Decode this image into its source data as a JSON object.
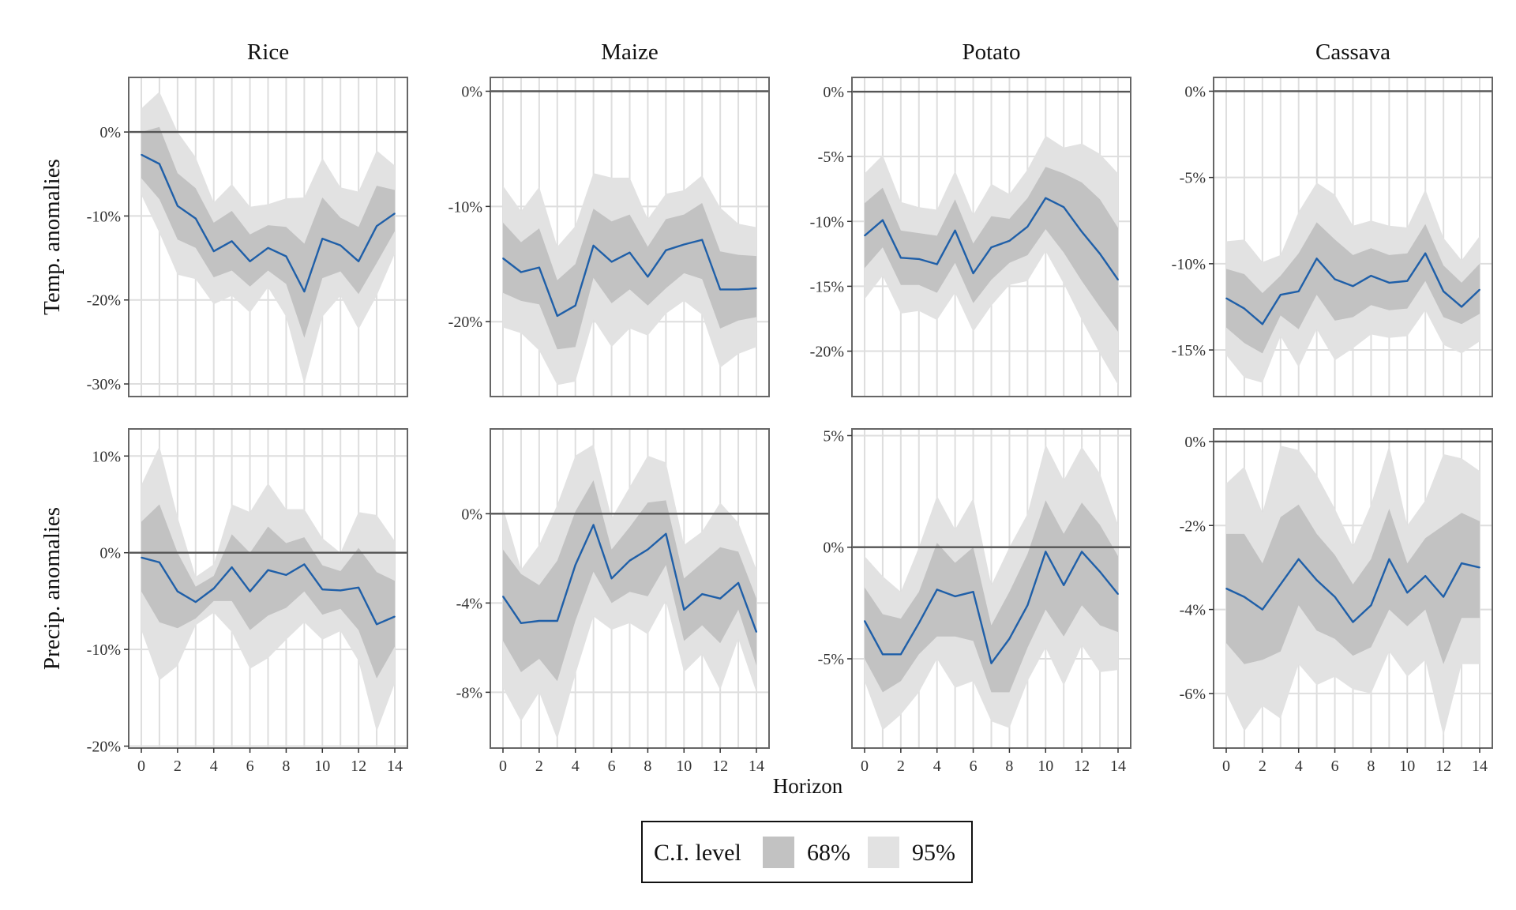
{
  "chart_data": {
    "type": "line",
    "xlabel": "Horizon",
    "columns": [
      "Rice",
      "Maize",
      "Potato",
      "Cassava"
    ],
    "rows": [
      "Temp. anomalies",
      "Precip. anomalies"
    ],
    "x": [
      0,
      1,
      2,
      3,
      4,
      5,
      6,
      7,
      8,
      9,
      10,
      11,
      12,
      13,
      14
    ],
    "x_ticks": [
      0,
      2,
      4,
      6,
      8,
      10,
      12,
      14
    ],
    "legend": {
      "title": "C.I. level",
      "items": [
        {
          "label": "68%",
          "color": "#c2c2c2"
        },
        {
          "label": "95%",
          "color": "#e2e2e2"
        }
      ],
      "placement": "bottom"
    },
    "line_color": "#1f5fa8",
    "grid": true,
    "panels": [
      {
        "crop": "Rice",
        "variable": "Temp. anomalies",
        "ylim": [
          -31.5,
          6.5
        ],
        "yticks": [
          0,
          -10,
          -20,
          -30
        ],
        "ytick_labels": [
          "0%",
          "-10%",
          "-20%",
          "-30%"
        ],
        "y": [
          -2.7,
          -3.8,
          -8.8,
          -10.3,
          -14.2,
          -13.0,
          -15.4,
          -13.8,
          -14.8,
          -19.0,
          -12.7,
          -13.5,
          -15.4,
          -11.2,
          -9.7
        ],
        "ci68": {
          "lower": [
            -5.5,
            -8.0,
            -12.8,
            -13.8,
            -17.3,
            -16.5,
            -18.4,
            -16.5,
            -18.1,
            -24.5,
            -17.4,
            -16.6,
            -19.3,
            -15.6,
            -11.8
          ],
          "upper": [
            0.0,
            0.6,
            -4.9,
            -6.7,
            -10.8,
            -9.4,
            -12.2,
            -11.1,
            -11.3,
            -13.3,
            -7.8,
            -10.2,
            -11.3,
            -6.4,
            -6.9
          ]
        },
        "ci95": {
          "lower": [
            -7.5,
            -12.0,
            -17.0,
            -17.5,
            -20.5,
            -19.5,
            -21.5,
            -18.5,
            -22.0,
            -30.0,
            -22.0,
            -19.5,
            -23.5,
            -19.5,
            -14.5
          ],
          "upper": [
            2.8,
            4.8,
            0.0,
            -3.0,
            -8.4,
            -6.2,
            -8.9,
            -8.6,
            -7.9,
            -7.8,
            -3.1,
            -6.6,
            -7.1,
            -2.2,
            -4.0
          ]
        }
      },
      {
        "crop": "Maize",
        "variable": "Temp. anomalies",
        "ylim": [
          -26.5,
          1.2
        ],
        "yticks": [
          0,
          -10,
          -20
        ],
        "ytick_labels": [
          "0%",
          "-10%",
          "-20%"
        ],
        "y": [
          -14.5,
          -15.7,
          -15.3,
          -19.5,
          -18.6,
          -13.4,
          -14.8,
          -14.0,
          -16.1,
          -13.8,
          -13.3,
          -12.9,
          -17.2,
          -17.2,
          -17.1
        ],
        "ci68": {
          "lower": [
            -17.5,
            -18.2,
            -18.5,
            -22.4,
            -22.2,
            -16.2,
            -18.4,
            -17.2,
            -18.6,
            -17.1,
            -15.8,
            -16.3,
            -20.6,
            -19.9,
            -19.6
          ],
          "upper": [
            -11.4,
            -13.1,
            -11.9,
            -16.4,
            -15.0,
            -10.2,
            -11.3,
            -10.7,
            -13.5,
            -11.1,
            -10.7,
            -9.7,
            -13.9,
            -14.2,
            -14.3
          ]
        },
        "ci95": {
          "lower": [
            -20.5,
            -21.0,
            -22.5,
            -25.5,
            -25.2,
            -19.8,
            -22.2,
            -20.6,
            -21.2,
            -19.3,
            -18.2,
            -19.4,
            -24.0,
            -22.8,
            -22.2
          ],
          "upper": [
            -8.2,
            -10.4,
            -8.3,
            -13.5,
            -11.7,
            -7.1,
            -7.5,
            -7.5,
            -11.1,
            -8.9,
            -8.6,
            -7.3,
            -10.1,
            -11.5,
            -11.8
          ]
        }
      },
      {
        "crop": "Potato",
        "variable": "Temp. anomalies",
        "ylim": [
          -23.5,
          1.1
        ],
        "yticks": [
          0,
          -5,
          -10,
          -15,
          -20
        ],
        "ytick_labels": [
          "0%",
          "-5%",
          "-10%",
          "-15%",
          "-20%"
        ],
        "y": [
          -11.1,
          -9.9,
          -12.8,
          -12.9,
          -13.3,
          -10.7,
          -14.0,
          -12.0,
          -11.5,
          -10.4,
          -8.2,
          -8.9,
          -10.8,
          -12.5,
          -14.5
        ],
        "ci68": {
          "lower": [
            -13.6,
            -12.0,
            -14.9,
            -14.9,
            -15.5,
            -13.2,
            -16.3,
            -14.5,
            -13.2,
            -12.6,
            -10.6,
            -12.4,
            -14.6,
            -16.6,
            -18.5
          ],
          "upper": [
            -8.6,
            -7.4,
            -10.7,
            -10.9,
            -11.1,
            -8.3,
            -11.7,
            -9.6,
            -9.8,
            -8.2,
            -5.8,
            -6.3,
            -7.0,
            -8.3,
            -10.5
          ]
        },
        "ci95": {
          "lower": [
            -16.0,
            -14.2,
            -17.1,
            -16.9,
            -17.6,
            -15.5,
            -18.5,
            -16.5,
            -14.9,
            -14.6,
            -12.3,
            -14.8,
            -17.6,
            -20.2,
            -22.6
          ],
          "upper": [
            -6.3,
            -4.9,
            -8.5,
            -8.9,
            -9.1,
            -6.1,
            -9.5,
            -7.1,
            -7.9,
            -6.0,
            -3.4,
            -4.3,
            -4.0,
            -4.8,
            -6.3
          ]
        }
      },
      {
        "crop": "Cassava",
        "variable": "Temp. anomalies",
        "ylim": [
          -17.7,
          0.8
        ],
        "yticks": [
          0,
          -5,
          -10,
          -15
        ],
        "ytick_labels": [
          "0%",
          "-5%",
          "-10%",
          "-15%"
        ],
        "y": [
          -12.0,
          -12.6,
          -13.5,
          -11.8,
          -11.6,
          -9.7,
          -10.9,
          -11.3,
          -10.7,
          -11.1,
          -11.0,
          -9.4,
          -11.6,
          -12.5,
          -11.5
        ],
        "ci68": {
          "lower": [
            -13.7,
            -14.6,
            -15.2,
            -13.0,
            -13.8,
            -11.8,
            -13.3,
            -13.1,
            -12.4,
            -12.7,
            -12.6,
            -11.0,
            -13.1,
            -13.5,
            -12.9
          ],
          "upper": [
            -10.3,
            -10.6,
            -11.7,
            -10.7,
            -9.4,
            -7.6,
            -8.6,
            -9.5,
            -9.1,
            -9.5,
            -9.4,
            -7.7,
            -10.1,
            -11.1,
            -10.0
          ]
        },
        "ci95": {
          "lower": [
            -15.3,
            -16.6,
            -16.9,
            -14.2,
            -16.0,
            -13.8,
            -15.6,
            -14.9,
            -14.1,
            -14.3,
            -14.2,
            -12.7,
            -14.7,
            -15.2,
            -14.5
          ],
          "upper": [
            -8.7,
            -8.6,
            -9.9,
            -9.5,
            -7.0,
            -5.3,
            -6.0,
            -7.8,
            -7.5,
            -7.8,
            -7.9,
            -5.7,
            -8.5,
            -9.8,
            -8.4
          ]
        }
      },
      {
        "crop": "Rice",
        "variable": "Precip. anomalies",
        "ylim": [
          -20.2,
          12.8
        ],
        "yticks": [
          10,
          0,
          -10,
          -20
        ],
        "ytick_labels": [
          "10%",
          "0%",
          "-10%",
          "-20%"
        ],
        "y": [
          -0.5,
          -1.0,
          -4.0,
          -5.1,
          -3.7,
          -1.5,
          -4.0,
          -1.8,
          -2.3,
          -1.2,
          -3.8,
          -3.9,
          -3.6,
          -7.4,
          -6.6
        ],
        "ci68": {
          "lower": [
            -4.0,
            -7.2,
            -7.8,
            -6.8,
            -5.0,
            -5.0,
            -8.0,
            -6.5,
            -5.7,
            -4.0,
            -6.4,
            -5.8,
            -8.0,
            -13.0,
            -9.7
          ],
          "upper": [
            3.2,
            5.0,
            0.0,
            -3.5,
            -2.4,
            1.9,
            0.0,
            2.7,
            1.0,
            1.6,
            -1.3,
            -1.9,
            0.5,
            -2.0,
            -2.9
          ]
        },
        "ci95": {
          "lower": [
            -8.0,
            -13.2,
            -11.7,
            -7.5,
            -6.2,
            -8.2,
            -12.0,
            -10.9,
            -9.0,
            -7.2,
            -9.0,
            -8.1,
            -11.2,
            -18.5,
            -13.5
          ],
          "upper": [
            7.0,
            11.0,
            3.7,
            -2.5,
            -1.2,
            5.0,
            4.2,
            7.2,
            4.5,
            4.5,
            1.5,
            0.0,
            4.2,
            3.9,
            1.2
          ]
        }
      },
      {
        "crop": "Maize",
        "variable": "Precip. anomalies",
        "ylim": [
          -10.5,
          3.8
        ],
        "yticks": [
          0,
          -4,
          -8
        ],
        "ytick_labels": [
          "0%",
          "-4%",
          "-8%"
        ],
        "y": [
          -3.7,
          -4.9,
          -4.8,
          -4.8,
          -2.3,
          -0.5,
          -2.9,
          -2.1,
          -1.6,
          -0.9,
          -4.3,
          -3.6,
          -3.8,
          -3.1,
          -5.3
        ],
        "ci68": {
          "lower": [
            -5.7,
            -7.1,
            -6.5,
            -7.5,
            -4.8,
            -2.6,
            -4.0,
            -3.5,
            -3.7,
            -2.3,
            -5.7,
            -5.0,
            -5.8,
            -4.3,
            -6.8
          ],
          "upper": [
            -1.6,
            -2.7,
            -3.2,
            -2.1,
            0.1,
            1.5,
            -1.6,
            -0.6,
            0.5,
            0.6,
            -2.9,
            -2.2,
            -1.5,
            -1.7,
            -3.8
          ]
        },
        "ci95": {
          "lower": [
            -7.8,
            -9.3,
            -8.0,
            -10.1,
            -7.2,
            -4.6,
            -5.2,
            -4.9,
            -5.4,
            -3.9,
            -7.1,
            -6.3,
            -7.9,
            -5.6,
            -8.0
          ],
          "upper": [
            0.3,
            -2.5,
            -1.4,
            0.4,
            2.6,
            3.1,
            -0.2,
            1.2,
            2.6,
            2.3,
            -1.4,
            -0.8,
            0.5,
            -0.4,
            -2.5
          ]
        }
      },
      {
        "crop": "Potato",
        "variable": "Precip. anomalies",
        "ylim": [
          -9.0,
          5.3
        ],
        "yticks": [
          5,
          0,
          -5
        ],
        "ytick_labels": [
          "5%",
          "0%",
          "-5%"
        ],
        "y": [
          -3.3,
          -4.8,
          -4.8,
          -3.4,
          -1.9,
          -2.2,
          -2.0,
          -5.2,
          -4.1,
          -2.6,
          -0.2,
          -1.7,
          -0.2,
          -1.1,
          -2.1
        ],
        "ci68": {
          "lower": [
            -5.0,
            -6.5,
            -6.0,
            -4.8,
            -4.0,
            -4.0,
            -4.2,
            -6.5,
            -6.5,
            -4.5,
            -2.8,
            -4.0,
            -2.6,
            -3.5,
            -3.8
          ],
          "upper": [
            -1.8,
            -3.0,
            -3.2,
            -2.0,
            0.2,
            -0.7,
            0.0,
            -3.5,
            -2.0,
            -0.3,
            2.1,
            0.6,
            2.0,
            1.0,
            -0.4
          ]
        },
        "ci95": {
          "lower": [
            -6.0,
            -8.2,
            -7.5,
            -6.5,
            -5.0,
            -6.3,
            -6.0,
            -7.8,
            -8.1,
            -6.0,
            -4.5,
            -6.2,
            -4.4,
            -5.6,
            -5.5
          ],
          "upper": [
            -0.4,
            -1.3,
            -2.0,
            0.0,
            2.3,
            0.8,
            2.2,
            -1.7,
            0.0,
            1.5,
            4.6,
            3.0,
            4.5,
            3.3,
            1.0
          ]
        }
      },
      {
        "crop": "Cassava",
        "variable": "Precip. anomalies",
        "ylim": [
          -7.3,
          0.3
        ],
        "yticks": [
          0,
          -2,
          -4,
          -6
        ],
        "ytick_labels": [
          "0%",
          "-2%",
          "-4%",
          "-6%"
        ],
        "y": [
          -3.5,
          -3.7,
          -4.0,
          -3.4,
          -2.8,
          -3.3,
          -3.7,
          -4.3,
          -3.9,
          -2.8,
          -3.6,
          -3.2,
          -3.7,
          -2.9,
          -3.0
        ],
        "ci68": {
          "lower": [
            -4.8,
            -5.3,
            -5.2,
            -5.0,
            -3.9,
            -4.5,
            -4.7,
            -5.1,
            -4.9,
            -4.0,
            -4.4,
            -4.0,
            -5.3,
            -4.2,
            -4.2
          ],
          "upper": [
            -2.2,
            -2.2,
            -2.9,
            -1.8,
            -1.5,
            -2.2,
            -2.7,
            -3.4,
            -2.8,
            -1.6,
            -2.9,
            -2.3,
            -2.0,
            -1.7,
            -1.9
          ]
        },
        "ci95": {
          "lower": [
            -6.0,
            -6.9,
            -6.3,
            -6.6,
            -5.3,
            -5.8,
            -5.6,
            -5.9,
            -6.0,
            -5.0,
            -5.6,
            -5.2,
            -7.0,
            -5.3,
            -5.3
          ],
          "upper": [
            -1.0,
            -0.6,
            -1.7,
            -0.1,
            -0.2,
            -0.8,
            -1.6,
            -2.5,
            -1.5,
            -0.1,
            -2.0,
            -1.4,
            -0.3,
            -0.4,
            -0.7
          ]
        }
      }
    ]
  }
}
